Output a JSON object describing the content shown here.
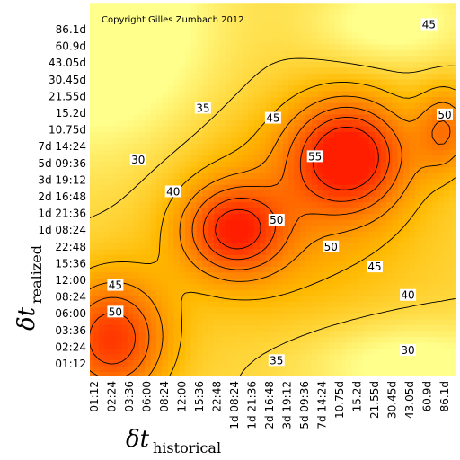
{
  "chart_data": {
    "type": "heatmap",
    "copyright": "Copyright Gilles Zumbach 2012",
    "xlabel": {
      "main": "δt",
      "sub": "historical"
    },
    "ylabel": {
      "main": "δt",
      "sub": "realized"
    },
    "x_ticks": [
      "01:12",
      "02:24",
      "03:36",
      "06:00",
      "08:24",
      "12:00",
      "15:36",
      "22:48",
      "1d 08:24",
      "1d 21:36",
      "2d 16:48",
      "3d 19:12",
      "5d 09:36",
      "7d 14:24",
      "10.75d",
      "15.2d",
      "21.55d",
      "30.45d",
      "43.05d",
      "60.9d",
      "86.1d"
    ],
    "y_ticks": [
      "01:12",
      "02:24",
      "03:36",
      "06:00",
      "08:24",
      "12:00",
      "15:36",
      "22:48",
      "1d 08:24",
      "1d 21:36",
      "2d 16:48",
      "3d 19:12",
      "5d 09:36",
      "7d 14:24",
      "10.75d",
      "15.2d",
      "21.55d",
      "30.45d",
      "43.05d",
      "60.9d",
      "86.1d"
    ],
    "contour_levels": [
      30,
      35,
      40,
      45,
      50,
      55
    ],
    "contour_labels": [
      {
        "text": "45",
        "x": 19.1,
        "y": 20.3
      },
      {
        "text": "35",
        "x": 6.2,
        "y": 15.3
      },
      {
        "text": "30",
        "x": 2.5,
        "y": 12.2
      },
      {
        "text": "40",
        "x": 4.5,
        "y": 10.3
      },
      {
        "text": "45",
        "x": 10.2,
        "y": 14.7
      },
      {
        "text": "55",
        "x": 12.6,
        "y": 12.4
      },
      {
        "text": "50",
        "x": 10.4,
        "y": 8.6
      },
      {
        "text": "50",
        "x": 13.5,
        "y": 7.0
      },
      {
        "text": "45",
        "x": 16.0,
        "y": 5.8
      },
      {
        "text": "40",
        "x": 17.9,
        "y": 4.1
      },
      {
        "text": "45",
        "x": 1.2,
        "y": 4.7
      },
      {
        "text": "50",
        "x": 1.2,
        "y": 3.1
      },
      {
        "text": "30",
        "x": 17.9,
        "y": 0.8
      },
      {
        "text": "35",
        "x": 10.4,
        "y": 0.2
      },
      {
        "text": "50",
        "x": 20.0,
        "y": 14.9
      }
    ]
  }
}
